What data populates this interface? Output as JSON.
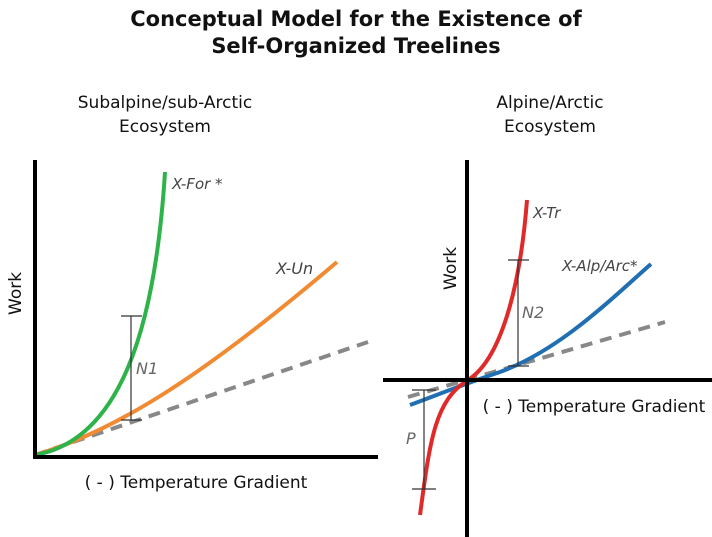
{
  "title": {
    "line1": "Conceptual Model for the Existence of",
    "line2": "Self-Organized Treelines"
  },
  "left_panel": {
    "heading_line1": "Subalpine/sub-Arctic",
    "heading_line2": "Ecosystem",
    "y_axis_label": "Work",
    "x_axis_label": "( - ) Temperature Gradient",
    "curve_forest_label": "X-For *",
    "curve_unforested_label": "X-Un",
    "gap_label": "N1"
  },
  "right_panel": {
    "heading_line1": "Alpine/Arctic",
    "heading_line2": "Ecosystem",
    "y_axis_label": "Work",
    "x_axis_label": "( - ) Temperature Gradient",
    "curve_tree_label": "X-Tr",
    "curve_alpine_label": "X-Alp/Arc*",
    "gap_upper_label": "N2",
    "gap_lower_label": "P"
  },
  "colors": {
    "green": "#2db34a",
    "orange": "#f08a33",
    "red": "#e02a2a",
    "blue": "#1f6fb2",
    "dashed": "#888888",
    "axis": "#000000"
  }
}
